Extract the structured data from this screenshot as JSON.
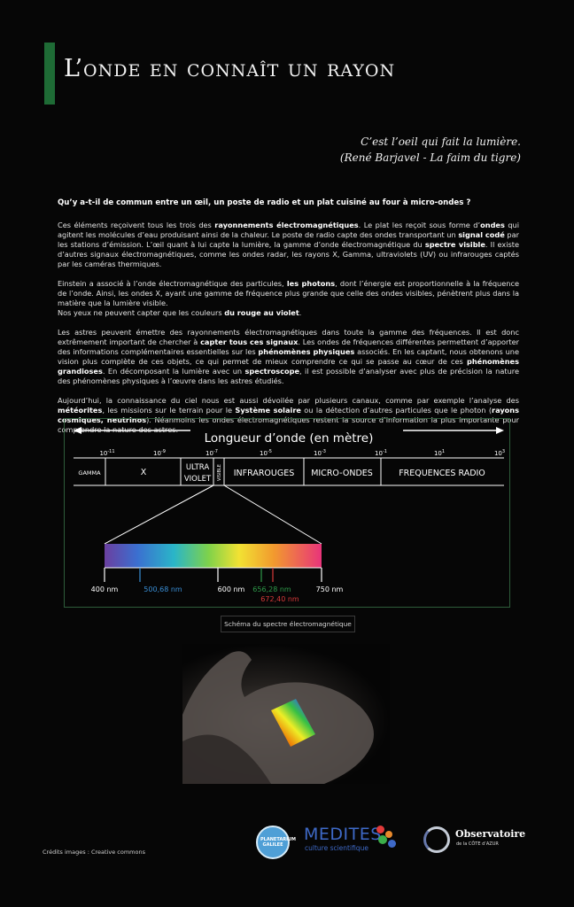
{
  "title": "L’onde en connaît un rayon",
  "quote": {
    "line1": "C’est l’oeil qui fait la lumière.",
    "line2": "(René Barjavel - La faim du tigre)"
  },
  "heading": "Qu’y a-t-il de commun entre un œil, un poste de radio et un plat cuisiné au four à micro-ondes ?",
  "p1": {
    "a": "Ces éléments reçoivent tous les trois des ",
    "b": "rayonnements électromagnétiques",
    "c": ". Le plat les reçoit sous forme d’",
    "d": "ondes",
    "e": " qui agitent les molécules d’eau produisant ainsi de la chaleur. Le poste de radio capte des ondes transportant un ",
    "f": "signal codé",
    "g": " par les stations d’émission. L’œil quant à lui capte la lumière, la gamme d’onde électromagnétique du ",
    "h": "spectre visible",
    "i": ". Il existe d’autres signaux électromagnétiques, comme les ondes radar, les rayons X, Gamma, ultraviolets (UV) ou infrarouges captés par les caméras thermiques."
  },
  "p2": {
    "a": "Einstein a associé à l’onde électromagnétique des particules, ",
    "b": "les photons",
    "c": ", dont l’énergie est proportionnelle à la fréquence de l’onde. Ainsi, les ondes X, ayant une gamme de fréquence plus grande que celle des ondes visibles, pénètrent plus dans la matière que la lumière visible.",
    "d": "Nos yeux ne peuvent capter que les couleurs ",
    "e": "du rouge au violet",
    "f": "."
  },
  "p3": {
    "a": "Les astres peuvent émettre des rayonnements électromagnétiques dans toute la gamme des fréquences. Il est donc extrêmement important de chercher à ",
    "b": "capter tous ces signaux",
    "c": ". Les ondes de fréquences différentes permettent d’apporter des informations complémentaires essentielles sur les ",
    "d": "phénomènes physiques",
    "e": " associés. En les captant, nous obtenons une vision plus complète de ces objets, ce qui permet de mieux comprendre ce qui se passe au cœur de ces ",
    "f": "phénomènes grandioses",
    "g": ". En décomposant la lumière avec un ",
    "h": "spectroscope",
    "i": ", il est possible d’analyser avec plus de précision la nature des phénomènes physiques à l’œuvre dans les astres étudiés."
  },
  "p4": {
    "a": "Aujourd’hui, la connaissance du ciel nous est aussi dévoilée par plusieurs canaux, comme par exemple l’analyse des ",
    "b": "météorites",
    "c": ", les missions sur le terrain pour le ",
    "d": "Système solaire",
    "e": " ou la détection d’autres particules que le photon (",
    "f": "rayons cosmiques, neutrinos",
    "g": "). Néanmoins les ondes électromagnétiques restent la source d’information la plus importante pour comprendre la nature des astres."
  },
  "spectrum": {
    "axis_title": "Longueur d’onde (en mètre)",
    "ticks": [
      {
        "base": "10",
        "exp": "-11"
      },
      {
        "base": "10",
        "exp": "-9"
      },
      {
        "base": "10",
        "exp": "-7"
      },
      {
        "base": "10",
        "exp": "-5"
      },
      {
        "base": "10",
        "exp": "-3"
      },
      {
        "base": "10",
        "exp": "-1"
      },
      {
        "base": "10",
        "exp": "1"
      },
      {
        "base": "10",
        "exp": "3"
      }
    ],
    "bands": [
      "GAMMA",
      "X",
      "ULTRA",
      "VIOLET",
      "VISIBLE",
      "INFRAROUGES",
      "MICRO-ONDES",
      "FREQUENCES RADIO"
    ],
    "visible_labels": [
      {
        "text": "400 nm",
        "color": "#ffffff"
      },
      {
        "text": "500,68 nm",
        "color": "#3a8fd6"
      },
      {
        "text": "600 nm",
        "color": "#ffffff"
      },
      {
        "text": "656,28 nm",
        "color": "#2e9a4a"
      },
      {
        "text": "672,40 nm",
        "color": "#d63a3a"
      },
      {
        "text": "750 nm",
        "color": "#ffffff"
      }
    ],
    "caption": "Schéma du spectre électromagnétique"
  },
  "credits": "Crédits images : Creative commons",
  "logos": {
    "planetarium": "PLANETARIUM GALILEE",
    "medites_name": "MEDITES",
    "medites_sub": "culture scientifique",
    "obs_name": "Observatoire",
    "obs_sub": "de la CÔTE d’AZUR"
  },
  "colors": {
    "title_bar": "#1e6b35",
    "frame": "#2e5d3b",
    "medites_blue": "#3e69c7"
  }
}
